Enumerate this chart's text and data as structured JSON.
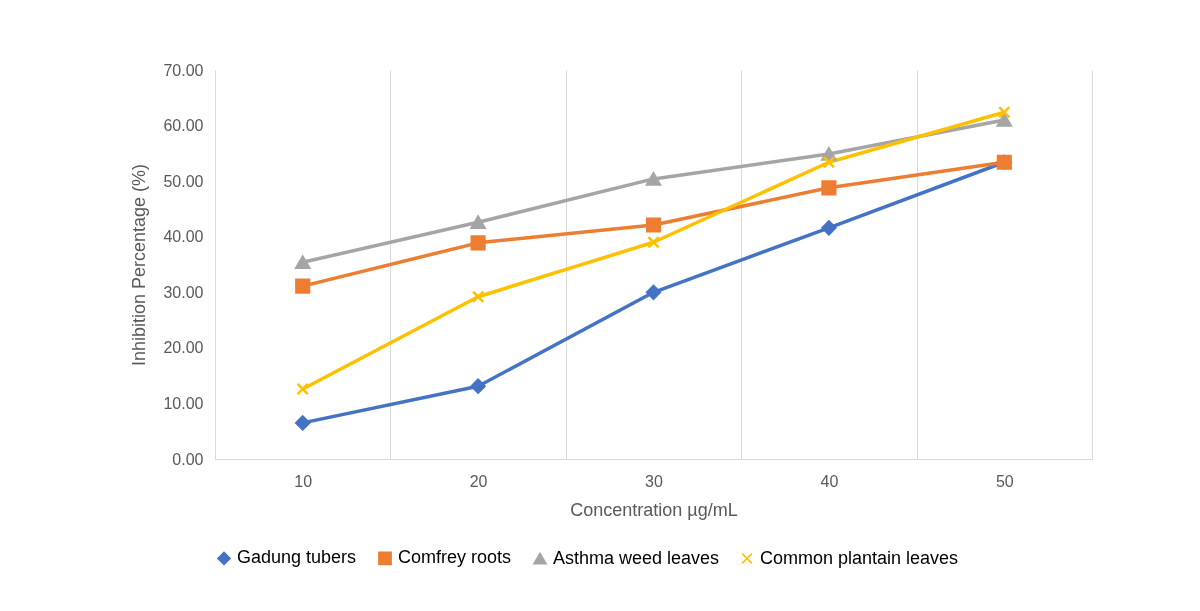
{
  "chart_data": {
    "type": "line",
    "xlabel": "Concentration µg/mL",
    "ylabel": "Inhibition Percentage (%)",
    "categories": [
      "10",
      "20",
      "30",
      "40",
      "50"
    ],
    "series": [
      {
        "name": "Gadung tubers",
        "color": "#4472c4",
        "marker": "diamond",
        "values": [
          6.5,
          13.1,
          30.0,
          41.6,
          53.4
        ]
      },
      {
        "name": "Comfrey roots",
        "color": "#ed7d31",
        "marker": "square",
        "values": [
          31.1,
          38.9,
          42.1,
          48.8,
          53.4
        ]
      },
      {
        "name": "Asthma weed leaves",
        "color": "#a5a5a5",
        "marker": "triangle",
        "values": [
          35.4,
          42.6,
          50.4,
          54.9,
          61.0
        ]
      },
      {
        "name": "Common plantain leaves",
        "color": "#ffc000",
        "marker": "cross",
        "values": [
          12.6,
          29.2,
          39.0,
          53.4,
          62.4
        ]
      }
    ],
    "ylim": [
      0,
      70
    ],
    "yticks": [
      {
        "value": 0,
        "label": "0.00"
      },
      {
        "value": 10,
        "label": "10.00"
      },
      {
        "value": 20,
        "label": "20.00"
      },
      {
        "value": 30,
        "label": "30.00"
      },
      {
        "value": 40,
        "label": "40.00"
      },
      {
        "value": 50,
        "label": "50.00"
      },
      {
        "value": 60,
        "label": "60.00"
      },
      {
        "value": 70,
        "label": "70.00"
      }
    ],
    "grid": "x",
    "legend": "bottom"
  }
}
